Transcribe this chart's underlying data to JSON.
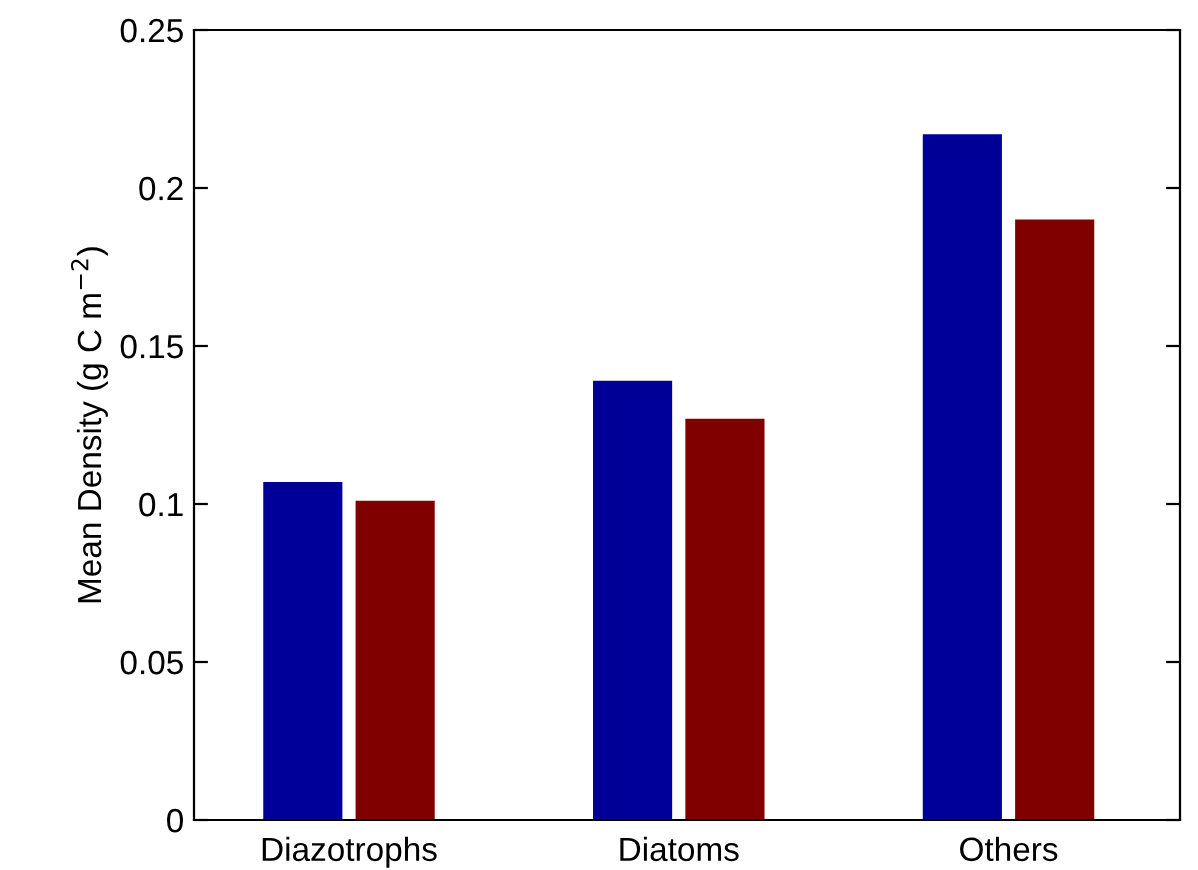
{
  "chart_data": {
    "type": "bar",
    "ylabel": "Mean Density (g C m$^{−2}$)",
    "categories": [
      "Diazotrophs",
      "Diatoms",
      "Others"
    ],
    "series": [
      {
        "color": "#000099",
        "values": [
          0.107,
          0.139,
          0.217
        ]
      },
      {
        "color": "#800000",
        "values": [
          0.101,
          0.127,
          0.19
        ]
      }
    ],
    "ylim": [
      0,
      0.25
    ],
    "yticks": [
      0,
      0.05,
      0.1,
      0.15,
      0.2,
      0.25
    ],
    "grid": false,
    "legend": false
  }
}
